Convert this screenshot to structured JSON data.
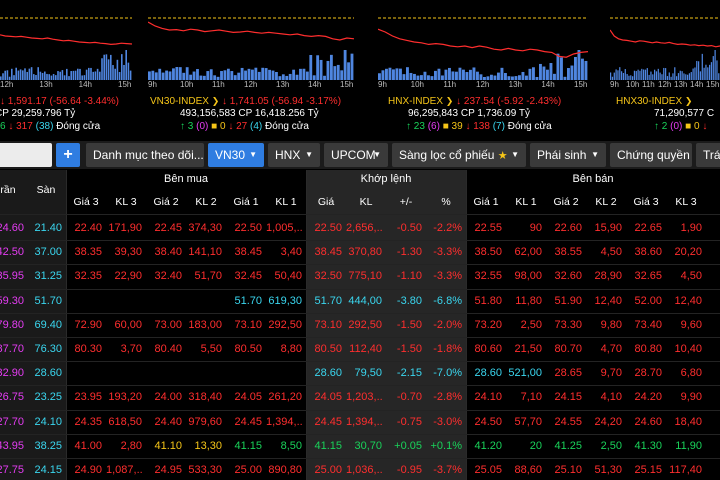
{
  "colors": {
    "up": "#19d25a",
    "down": "#ff2e2e",
    "ceiling": "#e43cf2",
    "floor": "#3ad6ef",
    "ref": "#f5c518",
    "accent": "#2f7de1",
    "white": "#ffffff"
  },
  "indices": [
    {
      "name": "",
      "value": "1,591.17",
      "change": "-56.64",
      "pct": "-3.44%",
      "volume": "",
      "cp_label": "CP",
      "value_traded": "29,259.796",
      "unit": "Tỷ",
      "up": "6",
      "down": "317",
      "unchanged_badge": "38",
      "status": "Đóng cửa",
      "axis": [
        "12h",
        "13h",
        "14h",
        "15h"
      ],
      "line": [
        0.42,
        0.45,
        0.46,
        0.47,
        0.46,
        0.48,
        0.5,
        0.51,
        0.52,
        0.5,
        0.53,
        0.55,
        0.57,
        0.56,
        0.58,
        0.6,
        0.61,
        0.62,
        0.61,
        0.63,
        0.64,
        0.66,
        0.65,
        0.63,
        0.64,
        0.65
      ]
    },
    {
      "name": "VN30-INDEX",
      "value": "1,741.05",
      "change": "-56.94",
      "pct": "-3.17%",
      "volume": "493,156,583",
      "cp_label": "CP",
      "value_traded": "16,418.256",
      "unit": "Tỷ",
      "up": "3",
      "ceiling": "0",
      "unchanged": "0",
      "down": "27",
      "floor": "4",
      "status": "Đóng cửa",
      "axis": [
        "9h",
        "10h",
        "11h",
        "12h",
        "13h",
        "14h",
        "15h"
      ],
      "line": [
        0.1,
        0.2,
        0.26,
        0.3,
        0.29,
        0.32,
        0.28,
        0.3,
        0.34,
        0.32,
        0.3,
        0.33,
        0.36,
        0.35,
        0.33,
        0.36,
        0.38,
        0.36,
        0.38,
        0.4,
        0.42,
        0.4,
        0.44,
        0.46,
        0.44,
        0.46,
        0.52,
        0.55,
        0.5,
        0.52
      ]
    },
    {
      "name": "HNX-INDEX",
      "value": "237.54",
      "change": "-5.92",
      "pct": "-2.43%",
      "volume": "96,295,843",
      "cp_label": "CP",
      "value_traded": "1,736.09",
      "unit": "Tỷ",
      "up": "23",
      "ceiling": "6",
      "unchanged": "39",
      "down": "138",
      "floor": "7",
      "status": "Đóng cửa",
      "axis": [
        "9h",
        "10h",
        "11h",
        "12h",
        "13h",
        "14h",
        "15h"
      ],
      "line": [
        0.28,
        0.35,
        0.45,
        0.52,
        0.56,
        0.6,
        0.62,
        0.66,
        0.64,
        0.66,
        0.7,
        0.72,
        0.7,
        0.74,
        0.7,
        0.73,
        0.78,
        0.8,
        0.76,
        0.8,
        0.82,
        0.78,
        0.8,
        0.84,
        0.86,
        0.96,
        0.98,
        0.9,
        0.86,
        0.84
      ]
    },
    {
      "name": "HNX30-INDEX",
      "value": "",
      "change": "",
      "pct": "",
      "volume": "71,290,577",
      "cp_label": "C",
      "value_traded": "",
      "unit": "",
      "up": "2",
      "ceiling": "0",
      "unchanged": "0",
      "down": "",
      "floor": "",
      "status": "",
      "axis": [
        "9h",
        "10h",
        "11h",
        "12h",
        "13h",
        "14h",
        "15h"
      ],
      "line": [
        0.3,
        0.45,
        0.52,
        0.55,
        0.56,
        0.58,
        0.6,
        0.57,
        0.58,
        0.6,
        0.62,
        0.6,
        0.62,
        0.63,
        0.61,
        0.64,
        0.66,
        0.65,
        0.66,
        0.68,
        0.67,
        0.69,
        0.68,
        0.7,
        0.69,
        0.72,
        0.7
      ]
    }
  ],
  "toolbar": {
    "plus": "+",
    "tabs": [
      {
        "label": "Danh mục theo dõi...",
        "caret": "▼"
      },
      {
        "label": "VN30",
        "caret": "▼"
      },
      {
        "label": "HNX",
        "caret": "▼"
      },
      {
        "label": "UPCOM",
        "caret": "▼"
      },
      {
        "label": "Sàng lọc cổ phiếu",
        "star": "★",
        "caret": "▼"
      },
      {
        "label": "Phái sinh",
        "caret": "▼"
      },
      {
        "label": "Chứng quyền"
      },
      {
        "label": "Trá"
      }
    ]
  },
  "board": {
    "groups": {
      "bid": "Bên mua",
      "match": "Khớp lệnh",
      "ask": "Bên bán"
    },
    "columns": [
      "rần",
      "Sàn",
      "Giá 3",
      "KL 3",
      "Giá 2",
      "KL 2",
      "Giá 1",
      "KL 1",
      "Giá",
      "KL",
      "+/-",
      "%",
      "Giá 1",
      "KL 1",
      "Giá 2",
      "KL 2",
      "Giá 3",
      "KL 3"
    ],
    "rows": [
      {
        "c": [
          "24.60",
          "21.40",
          "22.40",
          "171,90",
          "22.45",
          "374,30",
          "22.50",
          "1,005,...",
          "22.50",
          "2,656,...",
          "-0.50",
          "-2.2%",
          "22.55",
          "90",
          "22.60",
          "15,90",
          "22.65",
          "1,90"
        ],
        "k": [
          "p",
          "f",
          "d",
          "d",
          "d",
          "d",
          "d",
          "d",
          "d",
          "d",
          "d",
          "d",
          "d",
          "d",
          "d",
          "d",
          "d",
          "d"
        ]
      },
      {
        "c": [
          "42.50",
          "37.00",
          "38.35",
          "39,30",
          "38.40",
          "141,10",
          "38.45",
          "3,40",
          "38.45",
          "370,80",
          "-1.30",
          "-3.3%",
          "38.50",
          "62,00",
          "38.55",
          "4,50",
          "38.60",
          "20,20"
        ],
        "k": [
          "p",
          "f",
          "d",
          "d",
          "d",
          "d",
          "d",
          "d",
          "d",
          "d",
          "d",
          "d",
          "d",
          "d",
          "d",
          "d",
          "d",
          "d"
        ]
      },
      {
        "c": [
          "35.95",
          "31.25",
          "32.35",
          "22,90",
          "32.40",
          "51,70",
          "32.45",
          "50,40",
          "32.50",
          "775,10",
          "-1.10",
          "-3.3%",
          "32.55",
          "98,00",
          "32.60",
          "28,90",
          "32.65",
          "4,50"
        ],
        "k": [
          "p",
          "f",
          "d",
          "d",
          "d",
          "d",
          "d",
          "d",
          "d",
          "d",
          "d",
          "d",
          "d",
          "d",
          "d",
          "d",
          "d",
          "d"
        ]
      },
      {
        "c": [
          "59.30",
          "51.70",
          "",
          "",
          "",
          "",
          "51.70",
          "619,30",
          "51.70",
          "444,00",
          "-3.80",
          "-6.8%",
          "51.80",
          "11,80",
          "51.90",
          "12,40",
          "52.00",
          "12,40"
        ],
        "k": [
          "p",
          "f",
          "d",
          "d",
          "d",
          "d",
          "f",
          "f",
          "f",
          "f",
          "f",
          "f",
          "d",
          "d",
          "d",
          "d",
          "d",
          "d"
        ]
      },
      {
        "c": [
          "79.80",
          "69.40",
          "72.90",
          "60,00",
          "73.00",
          "183,00",
          "73.10",
          "292,50",
          "73.10",
          "292,50",
          "-1.50",
          "-2.0%",
          "73.20",
          "2,50",
          "73.30",
          "9,80",
          "73.40",
          "9,60"
        ],
        "k": [
          "p",
          "f",
          "d",
          "d",
          "d",
          "d",
          "d",
          "d",
          "d",
          "d",
          "d",
          "d",
          "d",
          "d",
          "d",
          "d",
          "d",
          "d"
        ]
      },
      {
        "c": [
          "87.70",
          "76.30",
          "80.30",
          "3,70",
          "80.40",
          "5,50",
          "80.50",
          "8,80",
          "80.50",
          "112,40",
          "-1.50",
          "-1.8%",
          "80.60",
          "21,50",
          "80.70",
          "4,70",
          "80.80",
          "10,40"
        ],
        "k": [
          "p",
          "f",
          "d",
          "d",
          "d",
          "d",
          "d",
          "d",
          "d",
          "d",
          "d",
          "d",
          "d",
          "d",
          "d",
          "d",
          "d",
          "d"
        ]
      },
      {
        "c": [
          "32.90",
          "28.60",
          "",
          "",
          "",
          "",
          "",
          "",
          "28.60",
          "79,50",
          "-2.15",
          "-7.0%",
          "28.60",
          "521,00",
          "28.65",
          "9,70",
          "28.70",
          "6,80"
        ],
        "k": [
          "p",
          "f",
          "d",
          "d",
          "d",
          "d",
          "d",
          "d",
          "f",
          "f",
          "f",
          "f",
          "f",
          "f",
          "d",
          "d",
          "d",
          "d"
        ]
      },
      {
        "c": [
          "26.75",
          "23.25",
          "23.95",
          "193,20",
          "24.00",
          "318,40",
          "24.05",
          "261,20",
          "24.05",
          "1,203,...",
          "-0.70",
          "-2.8%",
          "24.10",
          "7,10",
          "24.15",
          "4,10",
          "24.20",
          "9,90"
        ],
        "k": [
          "p",
          "f",
          "d",
          "d",
          "d",
          "d",
          "d",
          "d",
          "d",
          "d",
          "d",
          "d",
          "d",
          "d",
          "d",
          "d",
          "d",
          "d"
        ]
      },
      {
        "c": [
          "27.70",
          "24.10",
          "24.35",
          "618,50",
          "24.40",
          "979,60",
          "24.45",
          "1,394,...",
          "24.45",
          "1,394,...",
          "-0.75",
          "-3.0%",
          "24.50",
          "57,70",
          "24.55",
          "24,20",
          "24.60",
          "18,40"
        ],
        "k": [
          "p",
          "f",
          "d",
          "d",
          "d",
          "d",
          "d",
          "d",
          "d",
          "d",
          "d",
          "d",
          "d",
          "d",
          "d",
          "d",
          "d",
          "d"
        ]
      },
      {
        "c": [
          "43.95",
          "38.25",
          "41.00",
          "2,80",
          "41.10",
          "13,30",
          "41.15",
          "8,50",
          "41.15",
          "30,70",
          "+0.05",
          "+0.1%",
          "41.20",
          "20",
          "41.25",
          "2,50",
          "41.30",
          "11,90"
        ],
        "k": [
          "p",
          "f",
          "d",
          "d",
          "r",
          "r",
          "u",
          "u",
          "u",
          "u",
          "u",
          "u",
          "u",
          "u",
          "u",
          "u",
          "u",
          "u"
        ]
      },
      {
        "c": [
          "27.75",
          "24.15",
          "24.90",
          "1,087,...",
          "24.95",
          "533,30",
          "25.00",
          "890,80",
          "25.00",
          "1,036,...",
          "-0.95",
          "-3.7%",
          "25.05",
          "88,60",
          "25.10",
          "51,30",
          "25.15",
          "117,40"
        ],
        "k": [
          "p",
          "f",
          "d",
          "d",
          "d",
          "d",
          "d",
          "d",
          "d",
          "d",
          "d",
          "d",
          "d",
          "d",
          "d",
          "d",
          "d",
          "d"
        ]
      }
    ]
  }
}
